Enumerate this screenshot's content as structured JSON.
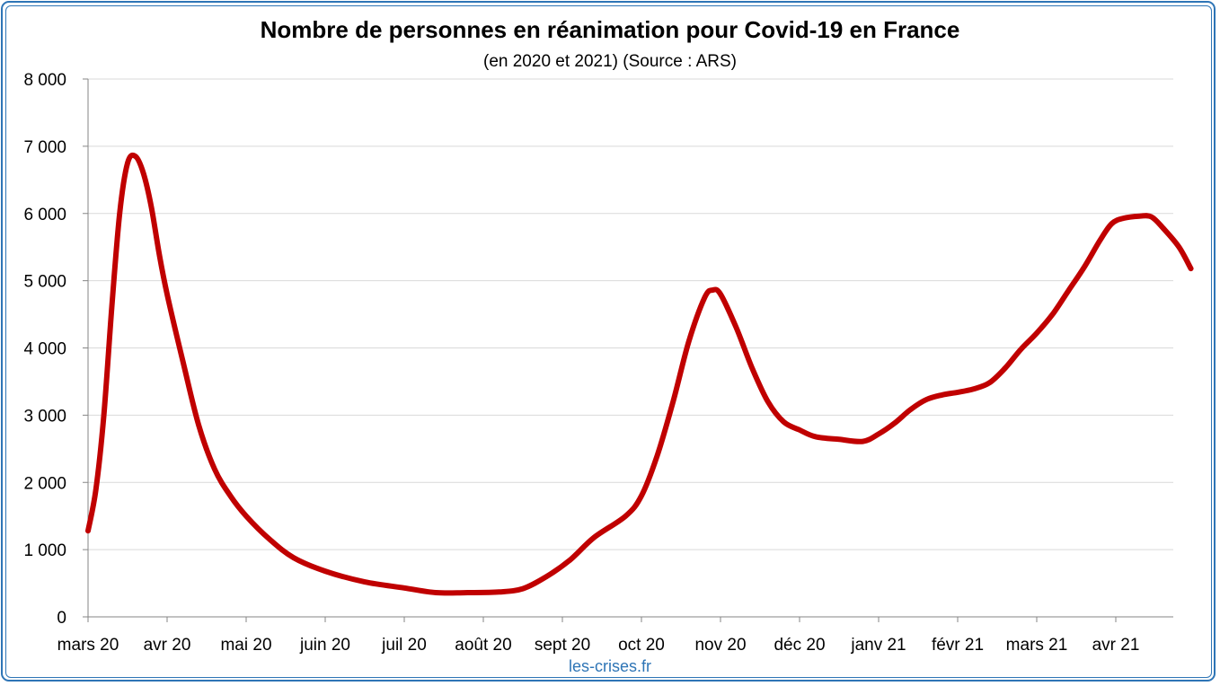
{
  "chart_data": {
    "type": "line",
    "title": "Nombre de personnes en réanimation pour Covid-19 en France",
    "subtitle": "(en 2020 et 2021) (Source : ARS)",
    "source_label": "les-crises.fr",
    "ylim": [
      0,
      8000
    ],
    "y_ticks": [
      {
        "value": 0,
        "label": "0"
      },
      {
        "value": 1000,
        "label": "1 000"
      },
      {
        "value": 2000,
        "label": "2 000"
      },
      {
        "value": 3000,
        "label": "3 000"
      },
      {
        "value": 4000,
        "label": "4 000"
      },
      {
        "value": 5000,
        "label": "5 000"
      },
      {
        "value": 6000,
        "label": "6 000"
      },
      {
        "value": 7000,
        "label": "7 000"
      },
      {
        "value": 8000,
        "label": "8 000"
      }
    ],
    "x_ticks": [
      "mars 20",
      "avr 20",
      "mai 20",
      "juin 20",
      "juil 20",
      "août 20",
      "sept 20",
      "oct 20",
      "nov 20",
      "déc 20",
      "janv 21",
      "févr 21",
      "mars 21",
      "avr 21"
    ],
    "grid": true,
    "line_color": "#c00000",
    "series": [
      {
        "values": [
          [
            0.0,
            1280
          ],
          [
            0.1,
            1900
          ],
          [
            0.2,
            3000
          ],
          [
            0.3,
            4600
          ],
          [
            0.4,
            6000
          ],
          [
            0.5,
            6750
          ],
          [
            0.6,
            6850
          ],
          [
            0.7,
            6600
          ],
          [
            0.8,
            6100
          ],
          [
            0.9,
            5400
          ],
          [
            1.0,
            4800
          ],
          [
            1.2,
            3800
          ],
          [
            1.4,
            2850
          ],
          [
            1.6,
            2200
          ],
          [
            1.8,
            1800
          ],
          [
            2.0,
            1500
          ],
          [
            2.3,
            1150
          ],
          [
            2.6,
            880
          ],
          [
            3.0,
            680
          ],
          [
            3.5,
            520
          ],
          [
            4.0,
            430
          ],
          [
            4.4,
            360
          ],
          [
            4.8,
            360
          ],
          [
            5.2,
            370
          ],
          [
            5.5,
            420
          ],
          [
            5.8,
            600
          ],
          [
            6.1,
            850
          ],
          [
            6.4,
            1180
          ],
          [
            6.8,
            1500
          ],
          [
            7.0,
            1800
          ],
          [
            7.2,
            2400
          ],
          [
            7.4,
            3200
          ],
          [
            7.6,
            4100
          ],
          [
            7.8,
            4750
          ],
          [
            7.9,
            4860
          ],
          [
            8.0,
            4800
          ],
          [
            8.2,
            4300
          ],
          [
            8.4,
            3700
          ],
          [
            8.6,
            3200
          ],
          [
            8.8,
            2900
          ],
          [
            9.0,
            2780
          ],
          [
            9.2,
            2680
          ],
          [
            9.5,
            2640
          ],
          [
            9.8,
            2610
          ],
          [
            10.0,
            2720
          ],
          [
            10.2,
            2880
          ],
          [
            10.4,
            3080
          ],
          [
            10.6,
            3230
          ],
          [
            10.8,
            3300
          ],
          [
            11.0,
            3340
          ],
          [
            11.2,
            3390
          ],
          [
            11.4,
            3480
          ],
          [
            11.6,
            3700
          ],
          [
            11.8,
            3980
          ],
          [
            12.0,
            4220
          ],
          [
            12.2,
            4500
          ],
          [
            12.4,
            4850
          ],
          [
            12.6,
            5200
          ],
          [
            12.8,
            5600
          ],
          [
            12.95,
            5850
          ],
          [
            13.1,
            5930
          ],
          [
            13.3,
            5960
          ],
          [
            13.45,
            5950
          ],
          [
            13.6,
            5780
          ],
          [
            13.8,
            5500
          ],
          [
            13.95,
            5180
          ]
        ]
      }
    ]
  }
}
